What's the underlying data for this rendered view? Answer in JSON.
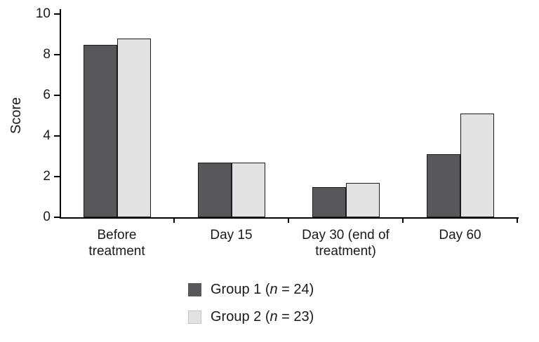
{
  "chart_data": {
    "type": "bar",
    "title": "",
    "xlabel": "",
    "ylabel": "Score",
    "ylim": [
      0,
      10
    ],
    "yticks": [
      0,
      2,
      4,
      6,
      8,
      10
    ],
    "grid": false,
    "legend_position": "bottom",
    "categories": [
      "Before treatment",
      "Day 15",
      "Day 30 (end of treatment)",
      "Day 60"
    ],
    "category_label_lines": [
      [
        "Before",
        "treatment"
      ],
      [
        "Day 15"
      ],
      [
        "Day 30 (end of",
        "treatment)"
      ],
      [
        "Day 60"
      ]
    ],
    "series": [
      {
        "name": "Group 1 (n = 24)",
        "color": "#58585a",
        "values": [
          8.5,
          2.7,
          1.5,
          3.1
        ]
      },
      {
        "name": "Group 2 (n = 23)",
        "color": "#e2e2e2",
        "values": [
          8.8,
          2.7,
          1.7,
          5.1
        ]
      }
    ]
  },
  "legend": {
    "items": [
      {
        "prefix": "Group 1 (",
        "n": "n",
        "suffix": " = 24)",
        "color": "#58585a"
      },
      {
        "prefix": "Group 2 (",
        "n": "n",
        "suffix": " = 23)",
        "color": "#e2e2e2"
      }
    ]
  }
}
